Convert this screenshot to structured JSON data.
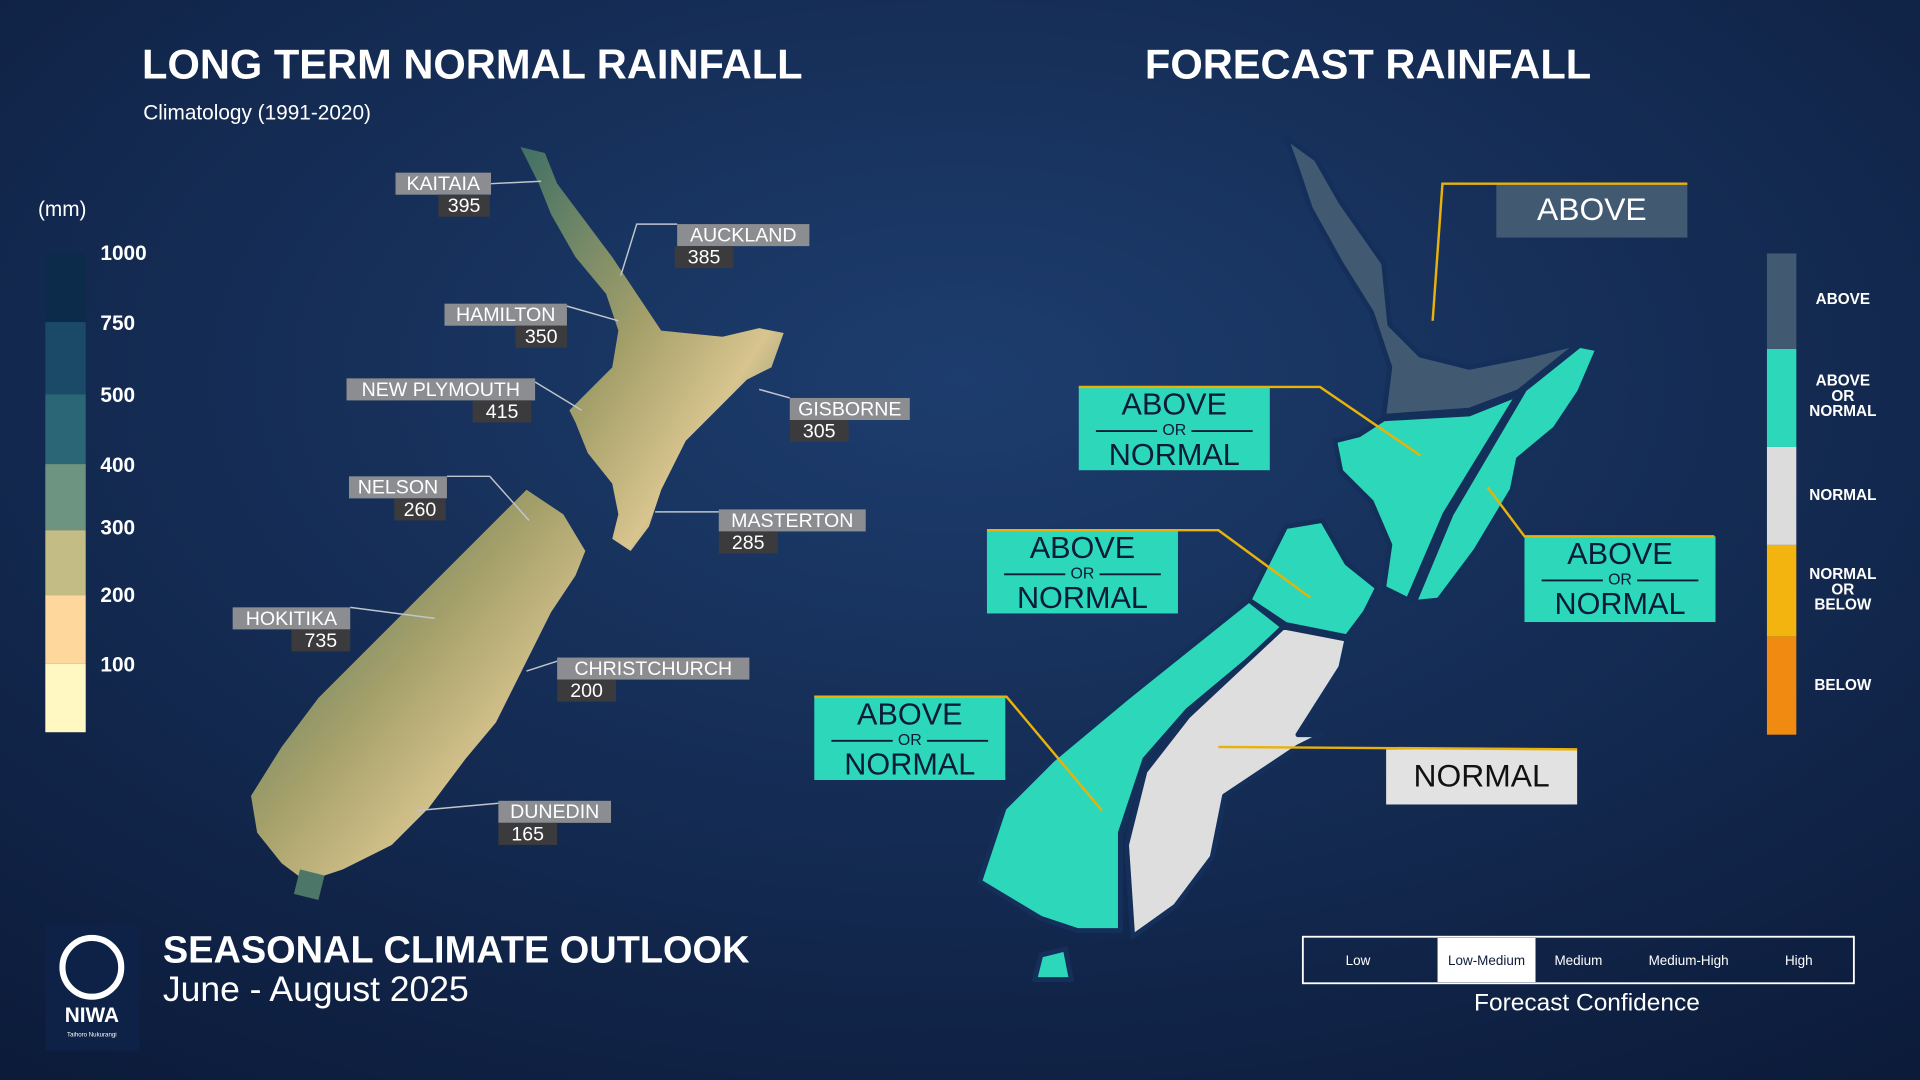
{
  "left": {
    "title": "LONG TERM NORMAL RAINFALL",
    "subtitle": "Climatology (1991-2020)",
    "unit": "(mm)",
    "scale": [
      1000,
      750,
      500,
      400,
      300,
      200,
      100
    ],
    "stations": [
      {
        "name": "KAITAIA",
        "value": 395
      },
      {
        "name": "AUCKLAND",
        "value": 385
      },
      {
        "name": "HAMILTON",
        "value": 350
      },
      {
        "name": "NEW PLYMOUTH",
        "value": 415
      },
      {
        "name": "GISBORNE",
        "value": 305
      },
      {
        "name": "NELSON",
        "value": 260
      },
      {
        "name": "MASTERTON",
        "value": 285
      },
      {
        "name": "HOKITIKA",
        "value": 735
      },
      {
        "name": "CHRISTCHURCH",
        "value": 200
      },
      {
        "name": "DUNEDIN",
        "value": 165
      }
    ]
  },
  "right": {
    "title": "FORECAST RAINFALL",
    "regions": [
      [
        "ABOVE"
      ],
      [
        "ABOVE",
        "OR",
        "NORMAL"
      ],
      [
        "ABOVE",
        "OR",
        "NORMAL"
      ],
      [
        "ABOVE",
        "OR",
        "NORMAL"
      ],
      [
        "ABOVE",
        "OR",
        "NORMAL"
      ],
      [
        "NORMAL"
      ]
    ],
    "legend": [
      [
        "ABOVE"
      ],
      [
        "ABOVE",
        "OR",
        "NORMAL"
      ],
      [
        "NORMAL"
      ],
      [
        "NORMAL",
        "OR",
        "BELOW"
      ],
      [
        "BELOW"
      ]
    ],
    "confidence": {
      "levels": [
        "Low",
        "Low-Medium",
        "Medium",
        "Medium-High",
        "High"
      ],
      "selected": 1,
      "label": "Forecast Confidence"
    }
  },
  "footer": {
    "title": "SEASONAL CLIMATE OUTLOOK",
    "period": "June - August 2025",
    "logo": "NIWA",
    "logo_sub": "Taihoro Nukurangi"
  }
}
